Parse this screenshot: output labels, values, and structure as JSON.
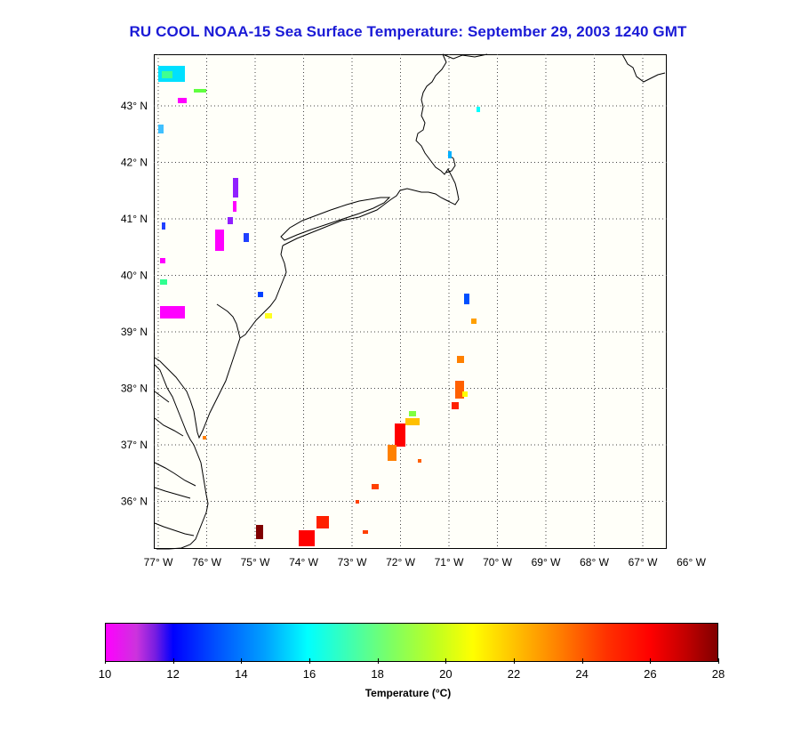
{
  "title": "RU COOL  NOAA-15  Sea Surface Temperature:  September 29, 2003 1240 GMT",
  "lon_labels": [
    "77° W",
    "76° W",
    "75° W",
    "74° W",
    "73° W",
    "72° W",
    "71° W",
    "70° W",
    "69° W",
    "68° W",
    "67° W",
    "66° W"
  ],
  "lat_labels": [
    "43° N",
    "42° N",
    "41° N",
    "40° N",
    "39° N",
    "38° N",
    "37° N",
    "36° N"
  ],
  "colorbar": {
    "title": "Temperature (°C)",
    "ticks": [
      "10",
      "12",
      "14",
      "16",
      "18",
      "20",
      "22",
      "24",
      "26",
      "28"
    ],
    "min": 10,
    "max": 28
  },
  "colors": {
    "title": "#1a1ad6",
    "land_outline": "#000000",
    "ocean_bg": "#fffff9"
  }
}
